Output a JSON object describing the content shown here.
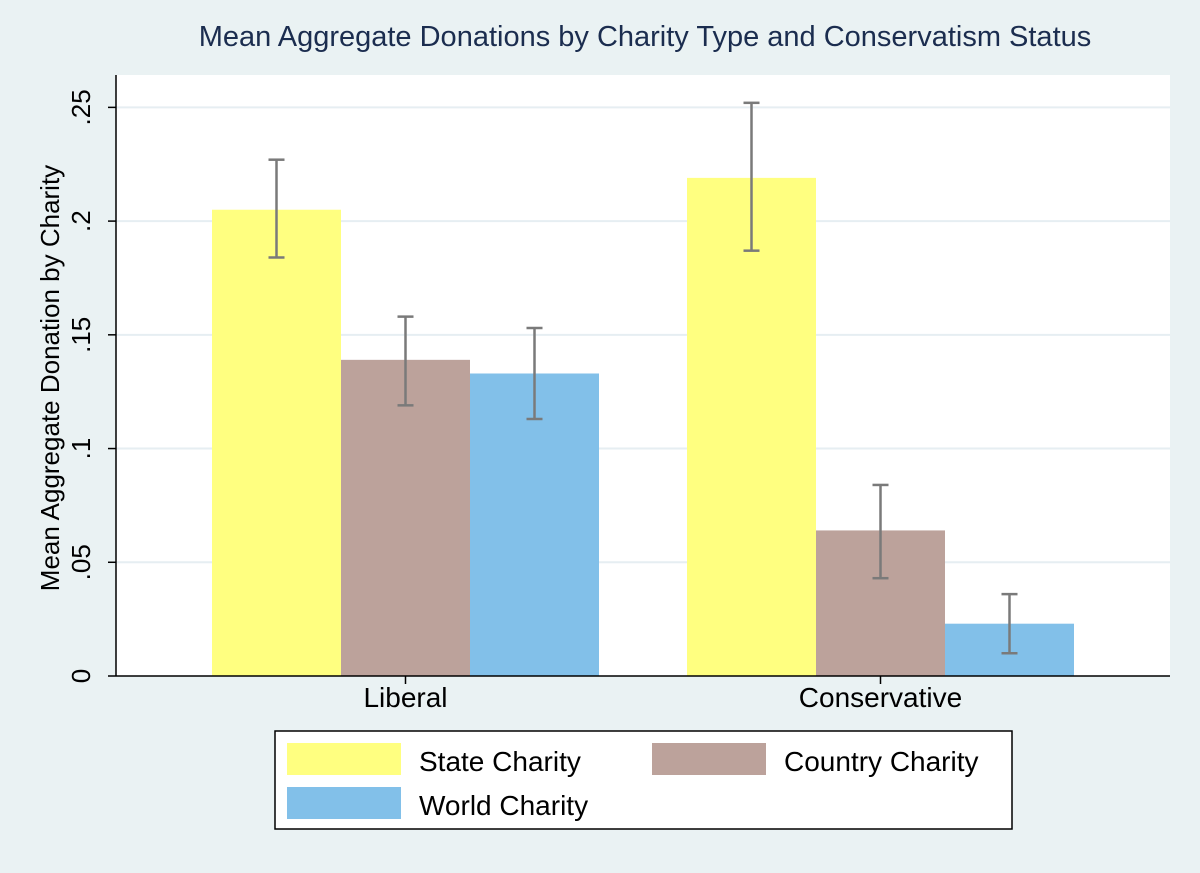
{
  "chart_data": {
    "type": "bar",
    "title": "Mean Aggregate Donations by Charity Type and Conservatism Status",
    "xlabel": "",
    "ylabel": "Mean Aggregate Donation by Charity",
    "ylim": [
      0,
      0.265
    ],
    "yticks": [
      0,
      0.05,
      0.1,
      0.15,
      0.2,
      0.25
    ],
    "ytick_labels": [
      "0",
      ".05",
      ".1",
      ".15",
      ".2",
      ".25"
    ],
    "grid": true,
    "legend_position": "bottom",
    "categories": [
      "Liberal",
      "Conservative"
    ],
    "series": [
      {
        "name": "State Charity",
        "color": "#ffff80",
        "values": [
          0.205,
          0.219
        ],
        "ci_low": [
          0.184,
          0.187
        ],
        "ci_high": [
          0.227,
          0.252
        ]
      },
      {
        "name": "Country Charity",
        "color": "#bca29b",
        "values": [
          0.139,
          0.064
        ],
        "ci_low": [
          0.119,
          0.043
        ],
        "ci_high": [
          0.158,
          0.084
        ]
      },
      {
        "name": "World Charity",
        "color": "#82c0e9",
        "values": [
          0.133,
          0.023
        ],
        "ci_low": [
          0.113,
          0.01
        ],
        "ci_high": [
          0.153,
          0.036
        ]
      }
    ]
  }
}
